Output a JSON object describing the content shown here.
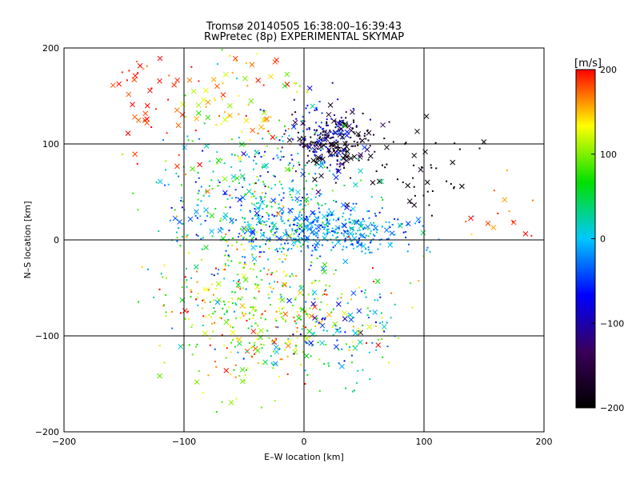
{
  "chart_data": {
    "type": "scatter",
    "title": "Tromsø 20140505 16:38:00–16:39:43",
    "subtitle": "RwPretec (8p) EXPERIMENTAL SKYMAP",
    "xlabel": "E–W location [km]",
    "ylabel": "N–S location [km]",
    "xlim": [
      -200,
      200
    ],
    "ylim": [
      -200,
      200
    ],
    "x_ticks": [
      -200,
      -100,
      0,
      100,
      200
    ],
    "y_ticks": [
      -200,
      -100,
      0,
      100,
      200
    ],
    "x_tick_labels": [
      "−200",
      "−100",
      "0",
      "100",
      "200"
    ],
    "y_tick_labels": [
      "−200",
      "−100",
      "0",
      "100",
      "200"
    ],
    "grid": true,
    "grid_lines": [
      -100,
      0,
      100
    ],
    "marker_styles": [
      "x",
      "dot"
    ],
    "colorbar": {
      "label": "[m/s]",
      "min": -200,
      "max": 200,
      "ticks": [
        200,
        100,
        0,
        -100,
        -200
      ],
      "tick_labels": [
        "200",
        "100",
        "0",
        "−100",
        "−200"
      ],
      "colors": [
        "#000000",
        "#3a005a",
        "#0000ff",
        "#00c8ff",
        "#00e000",
        "#ffff00",
        "#ff0000"
      ]
    },
    "clusters": [
      {
        "x": -130,
        "y": 150,
        "sx": 20,
        "sy": 30,
        "v_mean": 190,
        "v_sd": 15,
        "n": 45,
        "cross_ratio": 0.6
      },
      {
        "x": 30,
        "y": 100,
        "sx": 18,
        "sy": 15,
        "v_mean": -180,
        "v_sd": 25,
        "n": 190,
        "cross_ratio": 0.3
      },
      {
        "x": 15,
        "y": 110,
        "sx": 15,
        "sy": 20,
        "v_mean": -80,
        "v_sd": 30,
        "n": 110,
        "cross_ratio": 0.2
      },
      {
        "x": 95,
        "y": 60,
        "sx": 25,
        "sy": 25,
        "v_mean": -190,
        "v_sd": 10,
        "n": 45,
        "cross_ratio": 0.4
      },
      {
        "x": 20,
        "y": 10,
        "sx": 35,
        "sy": 12,
        "v_mean": -20,
        "v_sd": 25,
        "n": 380,
        "cross_ratio": 0.15
      },
      {
        "x": -40,
        "y": 40,
        "sx": 40,
        "sy": 40,
        "v_mean": 20,
        "v_sd": 60,
        "n": 420,
        "cross_ratio": 0.15
      },
      {
        "x": -40,
        "y": -70,
        "sx": 40,
        "sy": 40,
        "v_mean": 110,
        "v_sd": 50,
        "n": 400,
        "cross_ratio": 0.12
      },
      {
        "x": 30,
        "y": -90,
        "sx": 30,
        "sy": 30,
        "v_mean": 30,
        "v_sd": 70,
        "n": 150,
        "cross_ratio": 0.25
      },
      {
        "x": -60,
        "y": 140,
        "sx": 30,
        "sy": 30,
        "v_mean": 150,
        "v_sd": 40,
        "n": 80,
        "cross_ratio": 0.4
      },
      {
        "x": 160,
        "y": 20,
        "sx": 15,
        "sy": 25,
        "v_mean": 180,
        "v_sd": 20,
        "n": 15,
        "cross_ratio": 0.5
      }
    ]
  }
}
